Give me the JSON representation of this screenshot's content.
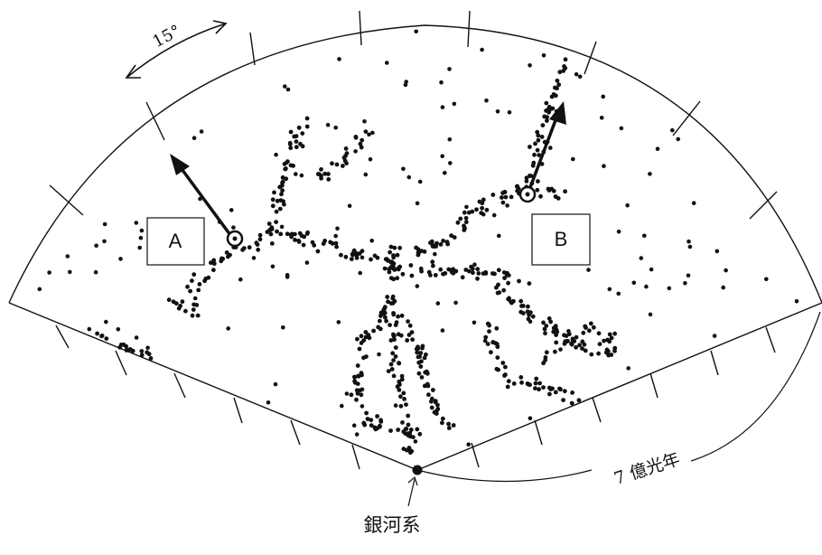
{
  "labels": {
    "angle": "15°",
    "distance": "7 億光年",
    "origin": "銀河系",
    "box_a": "A",
    "box_b": "B"
  },
  "colors": {
    "ink": "#111111",
    "background": "#ffffff"
  }
}
